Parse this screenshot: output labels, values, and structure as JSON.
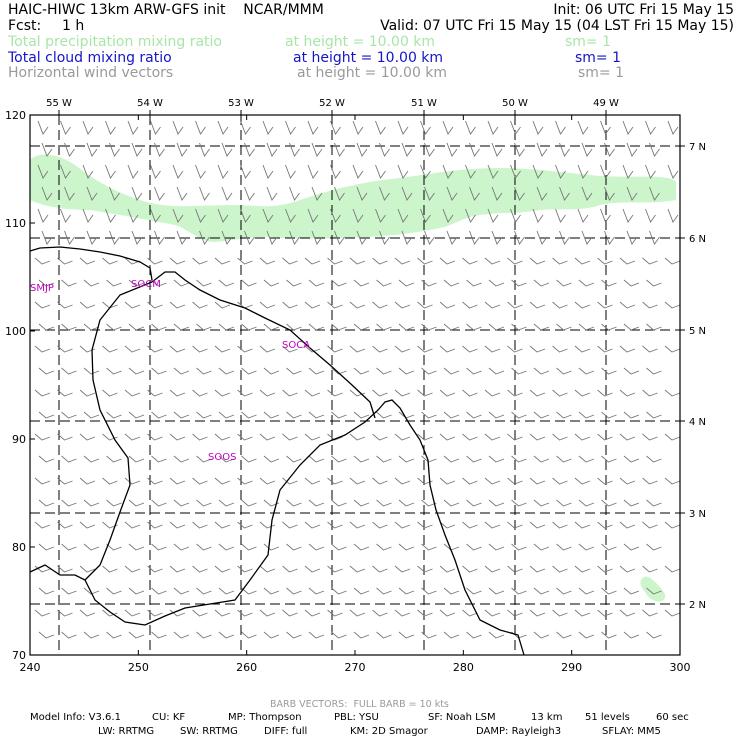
{
  "header": {
    "title": "HAIC-HIWC 13km ARW-GFS init    NCAR/MMM",
    "init": "Init: 06 UTC Fri 15 May 15",
    "fcst_label": "Fcst:",
    "fcst_value": "1 h",
    "valid": "Valid: 07 UTC Fri 15 May 15 (04 LST Fri 15 May 15)"
  },
  "fields": [
    {
      "name": "Total precipitation mixing ratio",
      "height": "at height = 10.00 km",
      "sm": "sm= 1",
      "color": "#a8e6a8"
    },
    {
      "name": "Total cloud mixing ratio",
      "height": "at height = 10.00 km",
      "sm": "sm= 1",
      "color": "#1515c8"
    },
    {
      "name": "Horizontal wind vectors",
      "height": "at height = 10.00 km",
      "sm": "sm= 1",
      "color": "#9a9a9a"
    }
  ],
  "map": {
    "x_ticks": [
      240,
      250,
      260,
      270,
      280,
      290,
      300
    ],
    "y_ticks": [
      70,
      80,
      90,
      100,
      110,
      120
    ],
    "lon_labels": [
      "55 W",
      "54 W",
      "53 W",
      "52 W",
      "51 W",
      "50 W",
      "49 W"
    ],
    "lat_labels": [
      "7 N",
      "6 N",
      "5 N",
      "4 N",
      "3 N",
      "2 N"
    ],
    "stations": [
      "SMJP",
      "SOCM",
      "SOCA",
      "SOOS"
    ],
    "precip_color": "#ccf5cc",
    "coast_color": "#000000",
    "barb_color": "#777777"
  },
  "footer": {
    "barb_note": "BARB VECTORS:  FULL BARB = 10 kts",
    "line1": {
      "model": "Model Info: V3.6.1",
      "cu": "CU: KF",
      "mp": "MP: Thompson",
      "pbl": "PBL: YSU",
      "sf": "SF: Noah LSM",
      "res": "13 km",
      "levels": "51 levels",
      "dt": "60 sec"
    },
    "line2": {
      "lw": "LW: RRTMG",
      "sw": "SW: RRTMG",
      "diff": "DIFF: full",
      "km": "KM: 2D Smagor",
      "damp": "DAMP: Rayleigh3",
      "sflay": "SFLAY: MM5"
    }
  }
}
